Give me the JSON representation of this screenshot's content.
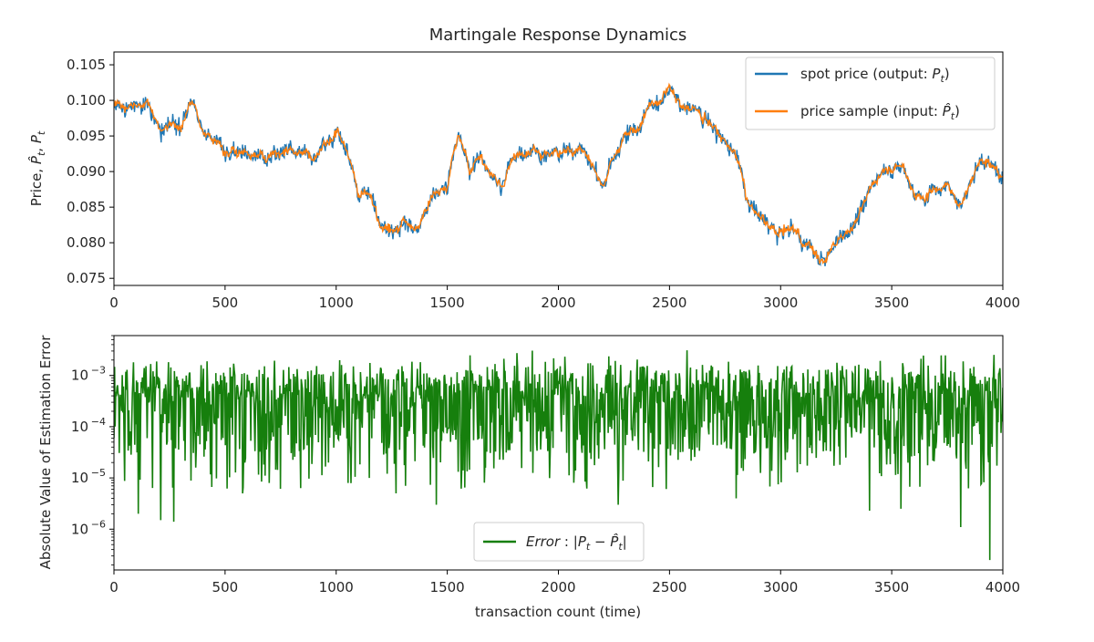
{
  "chart_data": [
    {
      "type": "line",
      "title": "Martingale Response Dynamics",
      "xlabel": "",
      "ylabel": "Price, P̂t, Pt",
      "ylabel_parts": [
        "Price, ",
        "P̂",
        "t",
        ", ",
        "P",
        "t"
      ],
      "xlim": [
        0,
        4000
      ],
      "ylim": [
        0.074,
        0.1068
      ],
      "xticks": [
        0,
        500,
        1000,
        1500,
        2000,
        2500,
        3000,
        3500,
        4000
      ],
      "xtick_labels": [
        "0",
        "500",
        "1000",
        "1500",
        "2000",
        "2500",
        "3000",
        "3500",
        "4000"
      ],
      "yticks": [
        0.075,
        0.08,
        0.085,
        0.09,
        0.095,
        0.1,
        0.105
      ],
      "ytick_labels": [
        "0.075",
        "0.080",
        "0.085",
        "0.090",
        "0.095",
        "0.100",
        "0.105"
      ],
      "legend_position": "top-right",
      "grid": false,
      "series": [
        {
          "name": "spot price (output: Pt)",
          "legend_parts": [
            "spot price (output: ",
            "P",
            "t",
            ")"
          ],
          "color": "#1f77b4",
          "x": [
            0,
            100,
            150,
            200,
            250,
            300,
            350,
            400,
            500,
            600,
            700,
            800,
            900,
            1000,
            1050,
            1100,
            1150,
            1200,
            1250,
            1300,
            1350,
            1400,
            1450,
            1500,
            1550,
            1600,
            1650,
            1700,
            1750,
            1800,
            1900,
            2000,
            2100,
            2150,
            2200,
            2250,
            2300,
            2350,
            2400,
            2450,
            2500,
            2550,
            2600,
            2700,
            2800,
            2850,
            2900,
            2950,
            3000,
            3050,
            3100,
            3150,
            3200,
            3250,
            3300,
            3350,
            3400,
            3450,
            3500,
            3550,
            3600,
            3650,
            3700,
            3750,
            3800,
            3850,
            3900,
            3950,
            4000
          ],
          "values": [
            0.099,
            0.099,
            0.1,
            0.0955,
            0.096,
            0.097,
            0.1,
            0.096,
            0.092,
            0.0935,
            0.092,
            0.093,
            0.092,
            0.096,
            0.093,
            0.086,
            0.087,
            0.083,
            0.0815,
            0.083,
            0.082,
            0.084,
            0.087,
            0.088,
            0.096,
            0.09,
            0.092,
            0.089,
            0.088,
            0.092,
            0.092,
            0.092,
            0.093,
            0.09,
            0.0885,
            0.092,
            0.095,
            0.096,
            0.099,
            0.1,
            0.102,
            0.099,
            0.099,
            0.096,
            0.092,
            0.086,
            0.084,
            0.083,
            0.082,
            0.082,
            0.08,
            0.079,
            0.0775,
            0.08,
            0.082,
            0.084,
            0.088,
            0.09,
            0.09,
            0.0905,
            0.087,
            0.086,
            0.088,
            0.0875,
            0.085,
            0.088,
            0.092,
            0.091,
            0.089
          ]
        },
        {
          "name": "price sample (input: P̂t)",
          "legend_parts": [
            "price sample (input: ",
            "P̂",
            "t",
            ")"
          ],
          "color": "#ff7f0e",
          "x": [
            0,
            100,
            150,
            200,
            250,
            300,
            350,
            400,
            500,
            600,
            700,
            800,
            900,
            1000,
            1050,
            1100,
            1150,
            1200,
            1250,
            1300,
            1350,
            1400,
            1450,
            1500,
            1550,
            1600,
            1650,
            1700,
            1750,
            1800,
            1900,
            2000,
            2100,
            2150,
            2200,
            2250,
            2300,
            2350,
            2400,
            2450,
            2500,
            2550,
            2600,
            2700,
            2800,
            2850,
            2900,
            2950,
            3000,
            3050,
            3100,
            3150,
            3200,
            3250,
            3300,
            3350,
            3400,
            3450,
            3500,
            3550,
            3600,
            3650,
            3700,
            3750,
            3800,
            3850,
            3900,
            3950,
            4000
          ],
          "values": [
            0.099,
            0.099,
            0.1,
            0.0955,
            0.096,
            0.097,
            0.1,
            0.096,
            0.092,
            0.0935,
            0.092,
            0.093,
            0.092,
            0.096,
            0.093,
            0.086,
            0.087,
            0.083,
            0.0815,
            0.083,
            0.082,
            0.084,
            0.087,
            0.088,
            0.096,
            0.09,
            0.092,
            0.089,
            0.088,
            0.092,
            0.092,
            0.092,
            0.093,
            0.09,
            0.0885,
            0.092,
            0.095,
            0.096,
            0.099,
            0.1,
            0.102,
            0.099,
            0.099,
            0.096,
            0.092,
            0.086,
            0.084,
            0.083,
            0.082,
            0.082,
            0.08,
            0.079,
            0.0775,
            0.08,
            0.082,
            0.084,
            0.088,
            0.09,
            0.09,
            0.0905,
            0.087,
            0.086,
            0.088,
            0.0875,
            0.085,
            0.088,
            0.092,
            0.091,
            0.089
          ]
        }
      ]
    },
    {
      "type": "line",
      "title": "",
      "xlabel": "transaction count (time)",
      "ylabel": "Absolute Value of Estimation Error",
      "yscale": "log",
      "xlim": [
        0,
        4000
      ],
      "ylim": [
        1.6e-07,
        0.006
      ],
      "xticks": [
        0,
        500,
        1000,
        1500,
        2000,
        2500,
        3000,
        3500,
        4000
      ],
      "xtick_labels": [
        "0",
        "500",
        "1000",
        "1500",
        "2000",
        "2500",
        "3000",
        "3500",
        "4000"
      ],
      "yticks": [
        1e-06,
        1e-05,
        0.0001,
        0.001
      ],
      "ytick_labels": [
        {
          "base": "10",
          "exp": "−6"
        },
        {
          "base": "10",
          "exp": "−5"
        },
        {
          "base": "10",
          "exp": "−4"
        },
        {
          "base": "10",
          "exp": "−3"
        }
      ],
      "legend_position": "lower-center",
      "grid": false,
      "series": [
        {
          "name": "Error : |Pt − P̂t|",
          "legend_parts": [
            "Error",
            " : |",
            "P",
            "t",
            " − ",
            "P̂",
            "t",
            "|"
          ],
          "color": "#167f0d",
          "typical": 0.0006,
          "dips": [
            {
              "x": 110,
              "value": 2e-06
            },
            {
              "x": 210,
              "value": 1.5e-06
            },
            {
              "x": 270,
              "value": 1.4e-06
            },
            {
              "x": 580,
              "value": 5e-06
            },
            {
              "x": 590,
              "value": 2e-05
            },
            {
              "x": 1150,
              "value": 1e-05
            },
            {
              "x": 1270,
              "value": 5e-06
            },
            {
              "x": 1450,
              "value": 3e-06
            },
            {
              "x": 2270,
              "value": 3e-06
            },
            {
              "x": 2800,
              "value": 4e-06
            },
            {
              "x": 3400,
              "value": 2.3e-06
            },
            {
              "x": 3540,
              "value": 2.5e-06
            },
            {
              "x": 3810,
              "value": 1.1e-06
            },
            {
              "x": 3940,
              "value": 2.5e-07
            }
          ]
        }
      ]
    }
  ]
}
